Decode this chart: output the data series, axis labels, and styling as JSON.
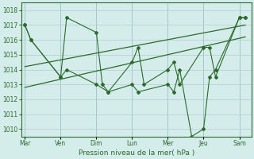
{
  "title": "",
  "xlabel": "Pression niveau de la mer( hPa )",
  "ylabel": "",
  "background_color": "#d4ecea",
  "line_color": "#2d6a2d",
  "grid_color": "#b0cece",
  "ylim": [
    1009.5,
    1018.5
  ],
  "x_ticks_labels": [
    "Mar",
    "Ven",
    "Dim",
    "Lun",
    "Mer",
    "Jeu",
    "Sam"
  ],
  "x_ticks_pos": [
    0,
    3,
    6,
    9,
    12,
    15,
    18
  ],
  "series1_x": [
    0,
    0.5,
    3,
    3.5,
    6,
    6.5,
    7,
    9,
    9.5,
    10,
    12,
    12.5,
    13,
    15,
    15.5,
    16,
    18,
    18.5
  ],
  "series1_y": [
    1017.0,
    1016.0,
    1013.5,
    1017.5,
    1016.5,
    1013.0,
    1012.5,
    1014.5,
    1015.5,
    1013.0,
    1014.0,
    1014.5,
    1013.0,
    1015.5,
    1015.5,
    1013.5,
    1017.5,
    1017.5
  ],
  "series2_x": [
    0,
    0.5,
    3,
    3.5,
    6,
    7,
    9,
    9.5,
    12,
    12.5,
    13,
    14,
    15,
    15.5,
    16,
    18,
    18.5
  ],
  "series2_y": [
    1017.0,
    1016.0,
    1013.5,
    1014.0,
    1013.0,
    1012.5,
    1013.0,
    1012.5,
    1013.0,
    1012.5,
    1014.0,
    1009.5,
    1010.0,
    1013.5,
    1014.0,
    1017.5,
    1017.5
  ],
  "trend1_x": [
    0,
    18.5
  ],
  "trend1_y": [
    1012.8,
    1016.2
  ],
  "trend2_x": [
    0,
    18.5
  ],
  "trend2_y": [
    1014.2,
    1017.0
  ],
  "xlim": [
    -0.3,
    19.0
  ]
}
